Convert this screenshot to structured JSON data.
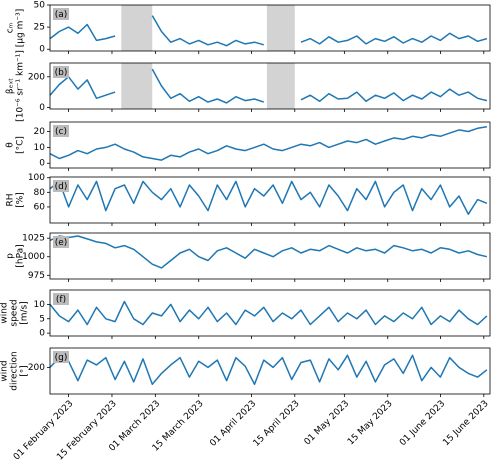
{
  "chart_data": [
    {
      "type": "line",
      "label": "(a)",
      "ylabel": [
        "cₘ",
        "[µg m⁻³]"
      ],
      "x": [
        "2023-01-26",
        "2023-01-29",
        "2023-02-01",
        "2023-02-04",
        "2023-02-07",
        "2023-02-10",
        "2023-02-13",
        "2023-02-16",
        "2023-02-19",
        "2023-02-22",
        "2023-02-25",
        "2023-02-28",
        "2023-03-03",
        "2023-03-06",
        "2023-03-09",
        "2023-03-12",
        "2023-03-15",
        "2023-03-18",
        "2023-03-21",
        "2023-03-24",
        "2023-03-27",
        "2023-03-30",
        "2023-04-02",
        "2023-04-05",
        "2023-04-08",
        "2023-04-11",
        "2023-04-14",
        "2023-04-17",
        "2023-04-20",
        "2023-04-23",
        "2023-04-26",
        "2023-04-29",
        "2023-05-02",
        "2023-05-05",
        "2023-05-08",
        "2023-05-11",
        "2023-05-14",
        "2023-05-17",
        "2023-05-20",
        "2023-05-23",
        "2023-05-26",
        "2023-05-29",
        "2023-06-01",
        "2023-06-04",
        "2023-06-07",
        "2023-06-10",
        "2023-06-13",
        "2023-06-16"
      ],
      "series": [
        {
          "color": "#1f77b4",
          "values": [
            12,
            20,
            25,
            18,
            28,
            10,
            12,
            15,
            null,
            null,
            null,
            38,
            20,
            8,
            12,
            6,
            10,
            5,
            8,
            4,
            10,
            6,
            8,
            5,
            null,
            null,
            null,
            8,
            12,
            6,
            14,
            8,
            10,
            15,
            6,
            12,
            9,
            14,
            7,
            12,
            8,
            15,
            10,
            18,
            12,
            15,
            9,
            12
          ]
        }
      ],
      "shaded": [
        [
          "2023-02-18",
          "2023-02-28"
        ],
        [
          "2023-04-06",
          "2023-04-15"
        ]
      ],
      "shade_color": "#d3d3d3",
      "ylim": [
        -2,
        50
      ],
      "yticks": [
        0,
        25,
        50
      ]
    },
    {
      "type": "line",
      "label": "(b)",
      "ylabel": [
        "βₑₓₜ",
        "[10⁻⁶ sr⁻¹ km⁻¹]"
      ],
      "x": [
        "2023-01-26",
        "2023-01-29",
        "2023-02-01",
        "2023-02-04",
        "2023-02-07",
        "2023-02-10",
        "2023-02-13",
        "2023-02-16",
        "2023-02-19",
        "2023-02-22",
        "2023-02-25",
        "2023-02-28",
        "2023-03-03",
        "2023-03-06",
        "2023-03-09",
        "2023-03-12",
        "2023-03-15",
        "2023-03-18",
        "2023-03-21",
        "2023-03-24",
        "2023-03-27",
        "2023-03-30",
        "2023-04-02",
        "2023-04-05",
        "2023-04-08",
        "2023-04-11",
        "2023-04-14",
        "2023-04-17",
        "2023-04-20",
        "2023-04-23",
        "2023-04-26",
        "2023-04-29",
        "2023-05-02",
        "2023-05-05",
        "2023-05-08",
        "2023-05-11",
        "2023-05-14",
        "2023-05-17",
        "2023-05-20",
        "2023-05-23",
        "2023-05-26",
        "2023-05-29",
        "2023-06-01",
        "2023-06-04",
        "2023-06-07",
        "2023-06-10",
        "2023-06-13",
        "2023-06-16"
      ],
      "series": [
        {
          "color": "#1f77b4",
          "values": [
            80,
            150,
            200,
            120,
            180,
            60,
            80,
            100,
            null,
            null,
            null,
            250,
            140,
            60,
            90,
            40,
            70,
            35,
            55,
            30,
            70,
            45,
            55,
            35,
            null,
            null,
            null,
            50,
            80,
            40,
            90,
            55,
            60,
            100,
            40,
            80,
            60,
            95,
            45,
            80,
            55,
            100,
            70,
            120,
            80,
            100,
            60,
            45
          ]
        }
      ],
      "shaded": [
        [
          "2023-02-18",
          "2023-02-28"
        ],
        [
          "2023-04-06",
          "2023-04-15"
        ]
      ],
      "shade_color": "#d3d3d3",
      "ylim": [
        -10,
        290
      ],
      "yticks": [
        0,
        200
      ]
    },
    {
      "type": "line",
      "label": "(c)",
      "ylabel": [
        "θ",
        "[°C]"
      ],
      "x": [
        "2023-01-26",
        "2023-01-29",
        "2023-02-01",
        "2023-02-04",
        "2023-02-07",
        "2023-02-10",
        "2023-02-13",
        "2023-02-16",
        "2023-02-19",
        "2023-02-22",
        "2023-02-25",
        "2023-02-28",
        "2023-03-03",
        "2023-03-06",
        "2023-03-09",
        "2023-03-12",
        "2023-03-15",
        "2023-03-18",
        "2023-03-21",
        "2023-03-24",
        "2023-03-27",
        "2023-03-30",
        "2023-04-02",
        "2023-04-05",
        "2023-04-08",
        "2023-04-11",
        "2023-04-14",
        "2023-04-17",
        "2023-04-20",
        "2023-04-23",
        "2023-04-26",
        "2023-04-29",
        "2023-05-02",
        "2023-05-05",
        "2023-05-08",
        "2023-05-11",
        "2023-05-14",
        "2023-05-17",
        "2023-05-20",
        "2023-05-23",
        "2023-05-26",
        "2023-05-29",
        "2023-06-01",
        "2023-06-04",
        "2023-06-07",
        "2023-06-10",
        "2023-06-13",
        "2023-06-16"
      ],
      "series": [
        {
          "color": "#1f77b4",
          "values": [
            6,
            3,
            5,
            8,
            6,
            9,
            10,
            12,
            9,
            7,
            4,
            3,
            2,
            5,
            4,
            7,
            9,
            6,
            8,
            11,
            9,
            8,
            10,
            12,
            9,
            8,
            10,
            12,
            11,
            13,
            10,
            12,
            14,
            13,
            15,
            12,
            14,
            16,
            15,
            17,
            16,
            18,
            17,
            19,
            21,
            20,
            22,
            23
          ]
        }
      ],
      "ylim": [
        -3,
        26
      ],
      "yticks": [
        0,
        10,
        20
      ]
    },
    {
      "type": "line",
      "label": "(d)",
      "ylabel": [
        "RH",
        "[%]"
      ],
      "x": [
        "2023-01-26",
        "2023-01-29",
        "2023-02-01",
        "2023-02-04",
        "2023-02-07",
        "2023-02-10",
        "2023-02-13",
        "2023-02-16",
        "2023-02-19",
        "2023-02-22",
        "2023-02-25",
        "2023-02-28",
        "2023-03-03",
        "2023-03-06",
        "2023-03-09",
        "2023-03-12",
        "2023-03-15",
        "2023-03-18",
        "2023-03-21",
        "2023-03-24",
        "2023-03-27",
        "2023-03-30",
        "2023-04-02",
        "2023-04-05",
        "2023-04-08",
        "2023-04-11",
        "2023-04-14",
        "2023-04-17",
        "2023-04-20",
        "2023-04-23",
        "2023-04-26",
        "2023-04-29",
        "2023-05-02",
        "2023-05-05",
        "2023-05-08",
        "2023-05-11",
        "2023-05-14",
        "2023-05-17",
        "2023-05-20",
        "2023-05-23",
        "2023-05-26",
        "2023-05-29",
        "2023-06-01",
        "2023-06-04",
        "2023-06-07",
        "2023-06-10",
        "2023-06-13",
        "2023-06-16"
      ],
      "series": [
        {
          "color": "#1f77b4",
          "values": [
            85,
            95,
            60,
            90,
            70,
            95,
            55,
            85,
            90,
            65,
            95,
            80,
            70,
            85,
            60,
            90,
            75,
            55,
            90,
            70,
            95,
            60,
            85,
            75,
            90,
            65,
            95,
            70,
            80,
            60,
            90,
            75,
            55,
            85,
            70,
            95,
            60,
            80,
            90,
            55,
            85,
            70,
            90,
            60,
            75,
            50,
            70,
            65
          ]
        }
      ],
      "ylim": [
        38,
        101
      ],
      "yticks": [
        60,
        80,
        100
      ]
    },
    {
      "type": "line",
      "label": "(e)",
      "ylabel": [
        "p",
        "[hPa]"
      ],
      "x": [
        "2023-01-26",
        "2023-01-29",
        "2023-02-01",
        "2023-02-04",
        "2023-02-07",
        "2023-02-10",
        "2023-02-13",
        "2023-02-16",
        "2023-02-19",
        "2023-02-22",
        "2023-02-25",
        "2023-02-28",
        "2023-03-03",
        "2023-03-06",
        "2023-03-09",
        "2023-03-12",
        "2023-03-15",
        "2023-03-18",
        "2023-03-21",
        "2023-03-24",
        "2023-03-27",
        "2023-03-30",
        "2023-04-02",
        "2023-04-05",
        "2023-04-08",
        "2023-04-11",
        "2023-04-14",
        "2023-04-17",
        "2023-04-20",
        "2023-04-23",
        "2023-04-26",
        "2023-04-29",
        "2023-05-02",
        "2023-05-05",
        "2023-05-08",
        "2023-05-11",
        "2023-05-14",
        "2023-05-17",
        "2023-05-20",
        "2023-05-23",
        "2023-05-26",
        "2023-05-29",
        "2023-06-01",
        "2023-06-04",
        "2023-06-07",
        "2023-06-10",
        "2023-06-13",
        "2023-06-16"
      ],
      "series": [
        {
          "color": "#1f77b4",
          "values": [
            1022,
            1028,
            1026,
            1028,
            1024,
            1020,
            1018,
            1012,
            1015,
            1010,
            1000,
            990,
            985,
            995,
            1005,
            1010,
            1000,
            995,
            1008,
            1012,
            1005,
            998,
            1010,
            1005,
            1000,
            1008,
            1012,
            1005,
            1010,
            1008,
            1015,
            1010,
            1005,
            1012,
            1008,
            1010,
            1005,
            1015,
            1012,
            1008,
            1010,
            1005,
            1012,
            1010,
            1005,
            1008,
            1003,
            1000
          ]
        }
      ],
      "ylim": [
        970,
        1032
      ],
      "yticks": [
        975,
        1000,
        1025
      ]
    },
    {
      "type": "line",
      "label": "(f)",
      "ylabel": [
        "wind",
        "speed",
        "[m/s]"
      ],
      "x": [
        "2023-01-26",
        "2023-01-29",
        "2023-02-01",
        "2023-02-04",
        "2023-02-07",
        "2023-02-10",
        "2023-02-13",
        "2023-02-16",
        "2023-02-19",
        "2023-02-22",
        "2023-02-25",
        "2023-02-28",
        "2023-03-03",
        "2023-03-06",
        "2023-03-09",
        "2023-03-12",
        "2023-03-15",
        "2023-03-18",
        "2023-03-21",
        "2023-03-24",
        "2023-03-27",
        "2023-03-30",
        "2023-04-02",
        "2023-04-05",
        "2023-04-08",
        "2023-04-11",
        "2023-04-14",
        "2023-04-17",
        "2023-04-20",
        "2023-04-23",
        "2023-04-26",
        "2023-04-29",
        "2023-05-02",
        "2023-05-05",
        "2023-05-08",
        "2023-05-11",
        "2023-05-14",
        "2023-05-17",
        "2023-05-20",
        "2023-05-23",
        "2023-05-26",
        "2023-05-29",
        "2023-06-01",
        "2023-06-04",
        "2023-06-07",
        "2023-06-10",
        "2023-06-13",
        "2023-06-16"
      ],
      "series": [
        {
          "color": "#1f77b4",
          "values": [
            10,
            6,
            4,
            8,
            3,
            9,
            5,
            4,
            11,
            5,
            3,
            7,
            6,
            10,
            4,
            8,
            5,
            9,
            4,
            7,
            3,
            8,
            6,
            9,
            4,
            7,
            5,
            8,
            3,
            6,
            9,
            4,
            7,
            5,
            8,
            3,
            6,
            4,
            7,
            5,
            9,
            3,
            6,
            4,
            8,
            5,
            3,
            6
          ]
        }
      ],
      "ylim": [
        -1,
        15
      ],
      "yticks": [
        0,
        5,
        10
      ]
    },
    {
      "type": "line",
      "label": "(g)",
      "ylabel": [
        "wind",
        "direction",
        "[°]"
      ],
      "x": [
        "2023-01-26",
        "2023-01-29",
        "2023-02-01",
        "2023-02-04",
        "2023-02-07",
        "2023-02-10",
        "2023-02-13",
        "2023-02-16",
        "2023-02-19",
        "2023-02-22",
        "2023-02-25",
        "2023-02-28",
        "2023-03-03",
        "2023-03-06",
        "2023-03-09",
        "2023-03-12",
        "2023-03-15",
        "2023-03-18",
        "2023-03-21",
        "2023-03-24",
        "2023-03-27",
        "2023-03-30",
        "2023-04-02",
        "2023-04-05",
        "2023-04-08",
        "2023-04-11",
        "2023-04-14",
        "2023-04-17",
        "2023-04-20",
        "2023-04-23",
        "2023-04-26",
        "2023-04-29",
        "2023-05-02",
        "2023-05-05",
        "2023-05-08",
        "2023-05-11",
        "2023-05-14",
        "2023-05-17",
        "2023-05-20",
        "2023-05-23",
        "2023-05-26",
        "2023-05-29",
        "2023-06-01",
        "2023-06-04",
        "2023-06-07",
        "2023-06-10",
        "2023-06-13",
        "2023-06-16"
      ],
      "series": [
        {
          "color": "#1f77b4",
          "values": [
            200,
            280,
            250,
            90,
            260,
            220,
            280,
            100,
            250,
            80,
            270,
            60,
            150,
            220,
            280,
            120,
            250,
            200,
            260,
            90,
            280,
            210,
            60,
            260,
            200,
            280,
            100,
            240,
            260,
            80,
            270,
            180,
            300,
            120,
            250,
            80,
            220,
            270,
            150,
            300,
            90,
            200,
            120,
            280,
            200,
            150,
            120,
            180
          ]
        }
      ],
      "ylim": [
        -20,
        360
      ],
      "yticks": [
        200
      ],
      "xlim": [
        "2023-01-26",
        "2023-06-17"
      ],
      "xticks": [
        {
          "value": "2023-02-01",
          "label": "01 February 2023"
        },
        {
          "value": "2023-02-15",
          "label": "15 February 2023"
        },
        {
          "value": "2023-03-01",
          "label": "01 March 2023"
        },
        {
          "value": "2023-03-15",
          "label": "15 March 2023"
        },
        {
          "value": "2023-04-01",
          "label": "01 April 2023"
        },
        {
          "value": "2023-04-15",
          "label": "15 April 2023"
        },
        {
          "value": "2023-05-01",
          "label": "01 May 2023"
        },
        {
          "value": "2023-05-15",
          "label": "15 May 2023"
        },
        {
          "value": "2023-06-01",
          "label": "01 June 2023"
        },
        {
          "value": "2023-06-15",
          "label": "15 June 2023"
        }
      ]
    }
  ]
}
